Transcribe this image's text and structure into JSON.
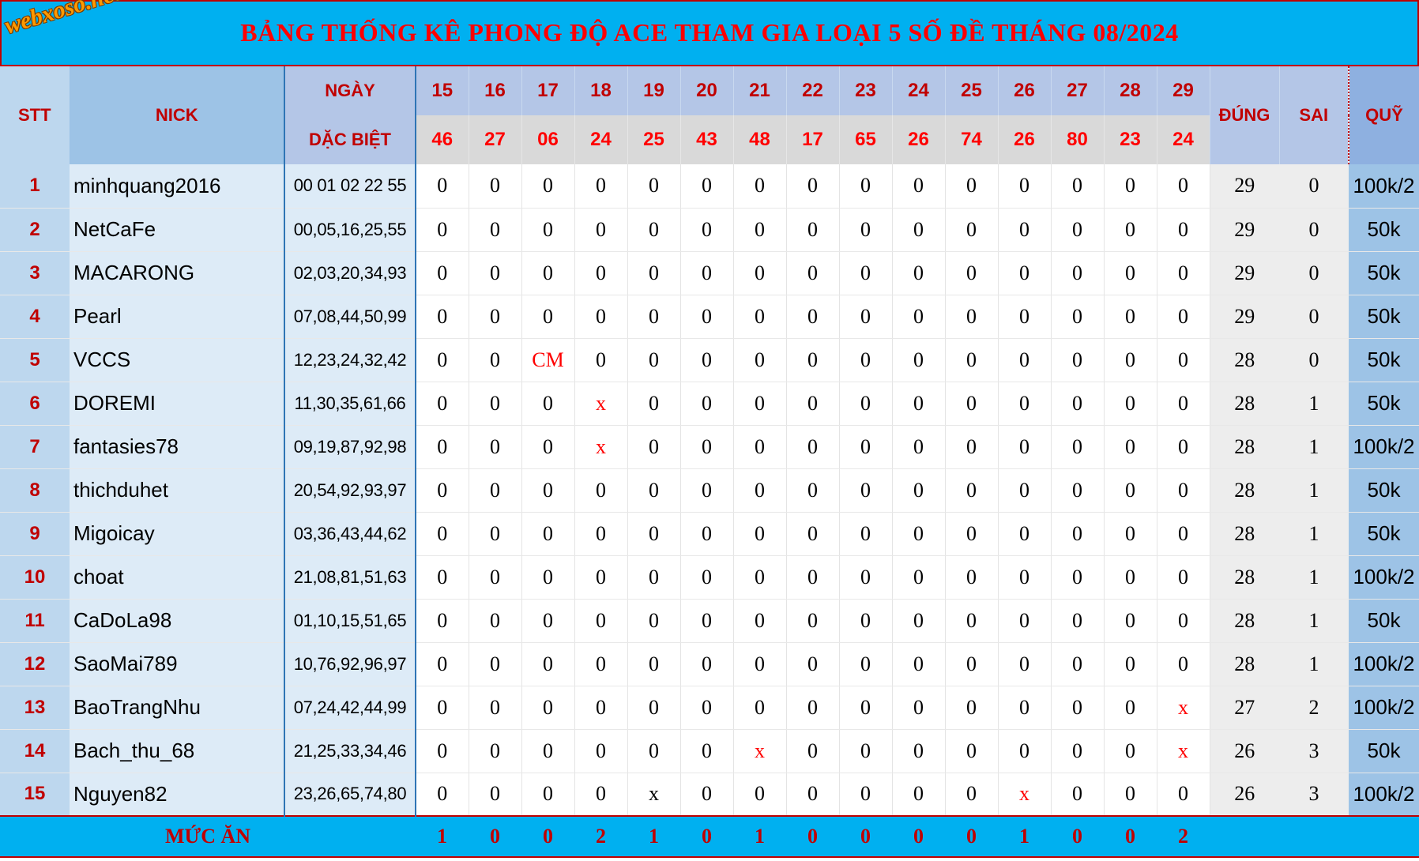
{
  "title": "BẢNG THỐNG KÊ PHONG ĐỘ ACE THAM GIA LOẠI 5 SỐ ĐỀ THÁNG 08/2024",
  "logo_text": "webxoso.net",
  "headers": {
    "stt": "STT",
    "nick": "NICK",
    "ngay": "NGÀY",
    "dac_biet": "DẶC BIỆT",
    "dung": "ĐÚNG",
    "sai": "SAI",
    "quy": "QUỸ"
  },
  "dates": [
    "15",
    "16",
    "17",
    "18",
    "19",
    "20",
    "21",
    "22",
    "23",
    "24",
    "25",
    "26",
    "27",
    "28",
    "29"
  ],
  "results": [
    "46",
    "27",
    "06",
    "24",
    "25",
    "43",
    "48",
    "17",
    "65",
    "26",
    "74",
    "26",
    "80",
    "23",
    "24"
  ],
  "rows": [
    {
      "stt": "1",
      "nick": "minhquang2016",
      "nums": "00 01 02 22 55",
      "cells": [
        "0",
        "0",
        "0",
        "0",
        "0",
        "0",
        "0",
        "0",
        "0",
        "0",
        "0",
        "0",
        "0",
        "0",
        "0"
      ],
      "dung": "29",
      "sai": "0",
      "quy": "100k/2"
    },
    {
      "stt": "2",
      "nick": "NetCaFe",
      "nums": "00,05,16,25,55",
      "cells": [
        "0",
        "0",
        "0",
        "0",
        "0",
        "0",
        "0",
        "0",
        "0",
        "0",
        "0",
        "0",
        "0",
        "0",
        "0"
      ],
      "dung": "29",
      "sai": "0",
      "quy": "50k"
    },
    {
      "stt": "3",
      "nick": "MACARONG",
      "nums": "02,03,20,34,93",
      "cells": [
        "0",
        "0",
        "0",
        "0",
        "0",
        "0",
        "0",
        "0",
        "0",
        "0",
        "0",
        "0",
        "0",
        "0",
        "0"
      ],
      "dung": "29",
      "sai": "0",
      "quy": "50k"
    },
    {
      "stt": "4",
      "nick": "Pearl",
      "nums": "07,08,44,50,99",
      "cells": [
        "0",
        "0",
        "0",
        "0",
        "0",
        "0",
        "0",
        "0",
        "0",
        "0",
        "0",
        "0",
        "0",
        "0",
        "0"
      ],
      "dung": "29",
      "sai": "0",
      "quy": "50k"
    },
    {
      "stt": "5",
      "nick": "VCCS",
      "nums": "12,23,24,32,42",
      "cells": [
        "0",
        "0",
        "CM",
        "0",
        "0",
        "0",
        "0",
        "0",
        "0",
        "0",
        "0",
        "0",
        "0",
        "0",
        "0"
      ],
      "dung": "28",
      "sai": "0",
      "quy": "50k"
    },
    {
      "stt": "6",
      "nick": "DOREMI",
      "nums": "11,30,35,61,66",
      "cells": [
        "0",
        "0",
        "0",
        "x",
        "0",
        "0",
        "0",
        "0",
        "0",
        "0",
        "0",
        "0",
        "0",
        "0",
        "0"
      ],
      "dung": "28",
      "sai": "1",
      "quy": "50k"
    },
    {
      "stt": "7",
      "nick": "fantasies78",
      "nums": "09,19,87,92,98",
      "cells": [
        "0",
        "0",
        "0",
        "x",
        "0",
        "0",
        "0",
        "0",
        "0",
        "0",
        "0",
        "0",
        "0",
        "0",
        "0"
      ],
      "dung": "28",
      "sai": "1",
      "quy": "100k/2"
    },
    {
      "stt": "8",
      "nick": "thichduhet",
      "nums": "20,54,92,93,97",
      "cells": [
        "0",
        "0",
        "0",
        "0",
        "0",
        "0",
        "0",
        "0",
        "0",
        "0",
        "0",
        "0",
        "0",
        "0",
        "0"
      ],
      "dung": "28",
      "sai": "1",
      "quy": "50k"
    },
    {
      "stt": "9",
      "nick": "Migoicay",
      "nums": "03,36,43,44,62",
      "cells": [
        "0",
        "0",
        "0",
        "0",
        "0",
        "0",
        "0",
        "0",
        "0",
        "0",
        "0",
        "0",
        "0",
        "0",
        "0"
      ],
      "dung": "28",
      "sai": "1",
      "quy": "50k"
    },
    {
      "stt": "10",
      "nick": "choat",
      "nums": "21,08,81,51,63",
      "cells": [
        "0",
        "0",
        "0",
        "0",
        "0",
        "0",
        "0",
        "0",
        "0",
        "0",
        "0",
        "0",
        "0",
        "0",
        "0"
      ],
      "dung": "28",
      "sai": "1",
      "quy": "100k/2"
    },
    {
      "stt": "11",
      "nick": "CaDoLa98",
      "nums": "01,10,15,51,65",
      "cells": [
        "0",
        "0",
        "0",
        "0",
        "0",
        "0",
        "0",
        "0",
        "0",
        "0",
        "0",
        "0",
        "0",
        "0",
        "0"
      ],
      "dung": "28",
      "sai": "1",
      "quy": "50k"
    },
    {
      "stt": "12",
      "nick": "SaoMai789",
      "nums": "10,76,92,96,97",
      "cells": [
        "0",
        "0",
        "0",
        "0",
        "0",
        "0",
        "0",
        "0",
        "0",
        "0",
        "0",
        "0",
        "0",
        "0",
        "0"
      ],
      "dung": "28",
      "sai": "1",
      "quy": "100k/2"
    },
    {
      "stt": "13",
      "nick": "BaoTrangNhu",
      "nums": "07,24,42,44,99",
      "cells": [
        "0",
        "0",
        "0",
        "0",
        "0",
        "0",
        "0",
        "0",
        "0",
        "0",
        "0",
        "0",
        "0",
        "0",
        "x"
      ],
      "dung": "27",
      "sai": "2",
      "quy": "100k/2"
    },
    {
      "stt": "14",
      "nick": "Bach_thu_68",
      "nums": "21,25,33,34,46",
      "cells": [
        "0",
        "0",
        "0",
        "0",
        "0",
        "0",
        "x",
        "0",
        "0",
        "0",
        "0",
        "0",
        "0",
        "0",
        "x"
      ],
      "dung": "26",
      "sai": "3",
      "quy": "50k"
    },
    {
      "stt": "15",
      "nick": "Nguyen82",
      "nums": "23,26,65,74,80",
      "cells": [
        "0",
        "0",
        "0",
        "0",
        "x",
        "0",
        "0",
        "0",
        "0",
        "0",
        "0",
        "x",
        "0",
        "0",
        "0"
      ],
      "dung": "26",
      "sai": "3",
      "quy": "100k/2"
    }
  ],
  "red_cells": [
    [
      4,
      2
    ],
    [
      5,
      3
    ],
    [
      6,
      3
    ],
    [
      12,
      14
    ],
    [
      13,
      6
    ],
    [
      13,
      14
    ],
    [
      14,
      11
    ]
  ],
  "footer": {
    "label": "MỨC ĂN",
    "values": [
      "1",
      "0",
      "0",
      "2",
      "1",
      "0",
      "1",
      "0",
      "0",
      "0",
      "0",
      "1",
      "0",
      "0",
      "2"
    ]
  },
  "colors": {
    "title_bg": "#00b0f0",
    "title_text": "#ff0000",
    "header_text": "#c00000",
    "result_bg": "#d9d9d9",
    "nick_bg": "#ddebf7"
  }
}
